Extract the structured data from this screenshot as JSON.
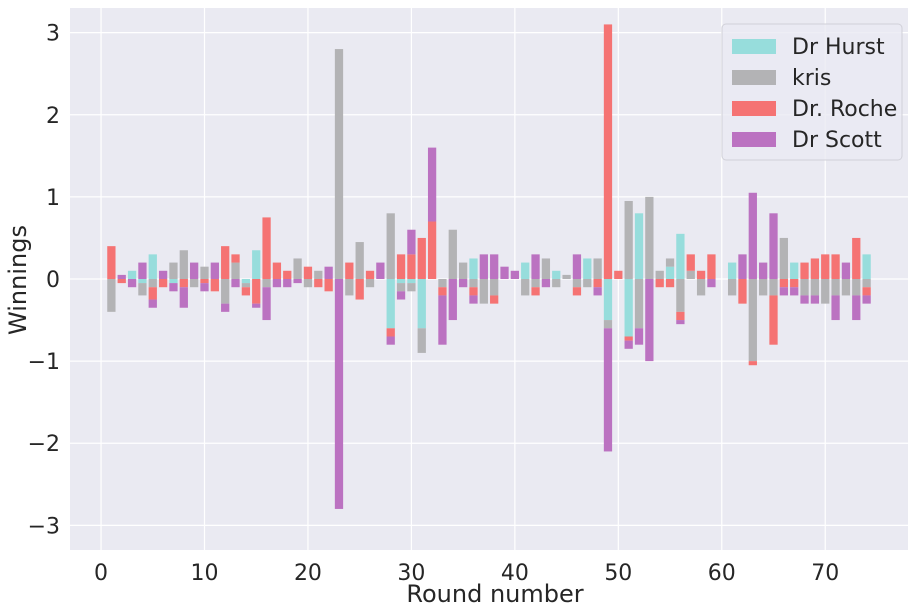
{
  "chart_data": {
    "type": "bar",
    "stacked": true,
    "xlabel": "Round number",
    "ylabel": "Winnings",
    "xlim": [
      -3,
      78
    ],
    "ylim": [
      -3.3,
      3.3
    ],
    "xticks": [
      0,
      10,
      20,
      30,
      40,
      50,
      60,
      70
    ],
    "yticks": [
      -3,
      -2,
      -1,
      0,
      1,
      2,
      3
    ],
    "grid": true,
    "legend_position": "top-right",
    "x": [
      1,
      2,
      3,
      4,
      5,
      6,
      7,
      8,
      9,
      10,
      11,
      12,
      13,
      14,
      15,
      16,
      17,
      18,
      19,
      20,
      21,
      22,
      23,
      24,
      25,
      26,
      27,
      28,
      29,
      30,
      31,
      32,
      33,
      34,
      35,
      36,
      37,
      38,
      39,
      40,
      41,
      42,
      43,
      44,
      45,
      46,
      47,
      48,
      49,
      50,
      51,
      52,
      53,
      54,
      55,
      56,
      57,
      58,
      59,
      60,
      61,
      62,
      63,
      64,
      65,
      66,
      67,
      68,
      69,
      70,
      71,
      72,
      73,
      74
    ],
    "series": [
      {
        "name": "Dr Hurst",
        "color": "#97dddc",
        "values": [
          0,
          0,
          0.1,
          -0.05,
          0.3,
          0,
          -0.05,
          0,
          0,
          0,
          0,
          0,
          0,
          -0.05,
          0.35,
          0,
          0,
          0,
          0,
          0,
          0,
          0,
          0,
          0,
          0,
          0,
          0,
          -0.6,
          -0.05,
          -0.05,
          -0.6,
          0,
          0,
          0,
          0,
          0.25,
          0,
          0,
          0,
          0,
          0.2,
          0,
          0,
          0.1,
          0,
          0,
          0.25,
          0,
          -0.5,
          0,
          -0.7,
          0.8,
          0,
          0,
          0.15,
          0.55,
          0,
          0,
          0,
          0,
          0.2,
          0,
          0,
          0,
          0,
          0,
          0.2,
          0,
          0,
          0,
          0,
          0,
          0,
          0.3
        ]
      },
      {
        "name": "kris",
        "color": "#b3b3b5",
        "values": [
          -0.4,
          0,
          0,
          -0.15,
          -0.1,
          0,
          0.2,
          0.35,
          -0.1,
          0.15,
          0,
          -0.3,
          0.2,
          -0.05,
          0,
          -0.1,
          0,
          0,
          0.25,
          -0.1,
          0.1,
          0,
          2.8,
          -0.2,
          0.45,
          -0.1,
          0,
          0.8,
          -0.1,
          -0.1,
          -0.3,
          0,
          -0.1,
          0.6,
          0.2,
          -0.1,
          -0.3,
          -0.2,
          0,
          0,
          -0.2,
          -0.1,
          0.25,
          -0.1,
          0.05,
          -0.1,
          -0.1,
          0.25,
          -0.1,
          0,
          0.95,
          -0.6,
          1.0,
          0.1,
          0.1,
          -0.4,
          0.1,
          -0.2,
          0,
          0,
          -0.2,
          0,
          -1.0,
          -0.2,
          -0.2,
          0.5,
          0,
          -0.2,
          -0.2,
          -0.3,
          -0.2,
          -0.2,
          -0.2,
          -0.1
        ]
      },
      {
        "name": "Dr. Roche",
        "color": "#f57373",
        "values": [
          0.4,
          -0.05,
          0,
          0,
          -0.15,
          -0.1,
          0,
          -0.1,
          0,
          -0.05,
          -0.15,
          0.4,
          0.1,
          -0.1,
          -0.3,
          0.75,
          0.2,
          0.1,
          0,
          0.15,
          -0.1,
          -0.15,
          0,
          0.2,
          -0.25,
          0.1,
          0,
          -0.1,
          0.3,
          0.3,
          0.5,
          0.7,
          -0.1,
          0,
          0,
          -0.1,
          0,
          -0.1,
          0,
          0,
          0,
          -0.1,
          0,
          0,
          0,
          -0.1,
          0,
          -0.1,
          3.1,
          0.1,
          -0.05,
          0,
          0,
          -0.1,
          -0.1,
          -0.1,
          0.2,
          0.1,
          0.3,
          0,
          0,
          -0.3,
          -0.05,
          0,
          -0.6,
          -0.1,
          -0.1,
          0.2,
          0.25,
          0.3,
          0.3,
          0,
          0.5,
          -0.1
        ]
      },
      {
        "name": "Dr Scott",
        "color": "#bb72c1",
        "values": [
          0,
          0.05,
          -0.1,
          0.2,
          -0.1,
          0.1,
          -0.1,
          -0.25,
          0.2,
          -0.1,
          0.2,
          -0.1,
          -0.1,
          0,
          -0.05,
          -0.4,
          -0.1,
          -0.1,
          -0.05,
          0,
          0,
          0.15,
          -2.8,
          0,
          0,
          0,
          0.2,
          -0.1,
          -0.1,
          0.3,
          0,
          0.9,
          -0.6,
          -0.5,
          -0.1,
          -0.1,
          0.3,
          0.3,
          0.15,
          0.1,
          0,
          0.3,
          -0.1,
          0,
          0,
          0.3,
          0,
          -0.1,
          -1.5,
          0,
          -0.1,
          -0.2,
          -1.0,
          0,
          0,
          -0.05,
          0,
          0,
          -0.1,
          0,
          0,
          0.3,
          1.05,
          0.2,
          0.8,
          -0.1,
          -0.1,
          -0.1,
          -0.1,
          0,
          -0.3,
          0.2,
          -0.3,
          -0.1
        ]
      }
    ]
  }
}
